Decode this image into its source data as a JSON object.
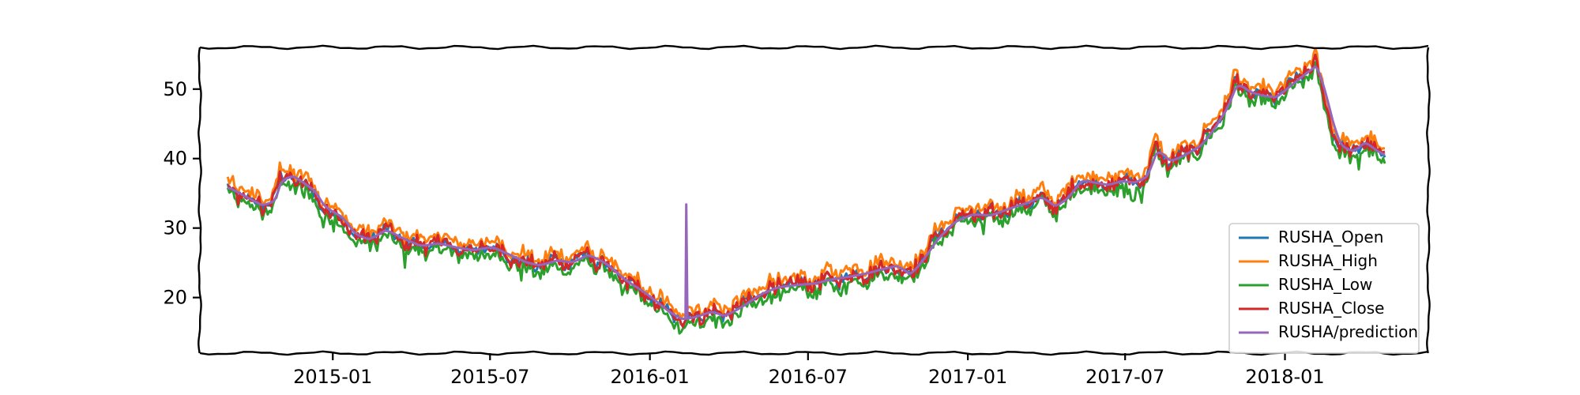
{
  "chart_data": {
    "type": "line",
    "title": "",
    "xlabel": "",
    "ylabel": "",
    "x_type": "date",
    "xlim": [
      "2014-08-01",
      "2018-06-15"
    ],
    "ylim": [
      12,
      56
    ],
    "x_ticks": [
      "2015-01-01",
      "2015-07-01",
      "2016-01-01",
      "2016-07-01",
      "2017-01-01",
      "2017-07-01",
      "2018-01-01"
    ],
    "x_tick_labels": [
      "2015-01",
      "2015-07",
      "2016-01",
      "2016-07",
      "2017-01",
      "2017-07",
      "2018-01"
    ],
    "y_ticks": [
      20,
      30,
      40,
      50
    ],
    "y_tick_labels": [
      "20",
      "30",
      "40",
      "50"
    ],
    "grid": false,
    "legend_position": "lower right",
    "series": [
      {
        "name": "RUSHA_Open",
        "color": "#1f77b4"
      },
      {
        "name": "RUSHA_High",
        "color": "#ff7f0e"
      },
      {
        "name": "RUSHA_Low",
        "color": "#2ca02c"
      },
      {
        "name": "RUSHA_Close",
        "color": "#d62728"
      },
      {
        "name": "RUSHA/prediction",
        "color": "#9467bd"
      }
    ],
    "price_path": [
      [
        "2014-09-02",
        35.8
      ],
      [
        "2014-09-20",
        34.5
      ],
      [
        "2014-10-10",
        33.2
      ],
      [
        "2014-10-25",
        34.0
      ],
      [
        "2014-11-01",
        37.2
      ],
      [
        "2014-11-15",
        37.5
      ],
      [
        "2014-12-01",
        36.0
      ],
      [
        "2014-12-10",
        35.2
      ],
      [
        "2014-12-20",
        33.0
      ],
      [
        "2015-01-10",
        31.5
      ],
      [
        "2015-01-25",
        29.0
      ],
      [
        "2015-02-10",
        28.3
      ],
      [
        "2015-03-01",
        29.8
      ],
      [
        "2015-03-20",
        28.5
      ],
      [
        "2015-04-10",
        27.4
      ],
      [
        "2015-05-01",
        27.8
      ],
      [
        "2015-05-20",
        27.2
      ],
      [
        "2015-06-10",
        26.8
      ],
      [
        "2015-07-01",
        27.3
      ],
      [
        "2015-07-20",
        26.2
      ],
      [
        "2015-08-10",
        25.0
      ],
      [
        "2015-08-25",
        24.6
      ],
      [
        "2015-09-15",
        25.4
      ],
      [
        "2015-10-01",
        25.0
      ],
      [
        "2015-10-20",
        26.2
      ],
      [
        "2015-11-10",
        24.8
      ],
      [
        "2015-12-01",
        22.5
      ],
      [
        "2015-12-20",
        21.0
      ],
      [
        "2016-01-05",
        19.5
      ],
      [
        "2016-01-20",
        18.0
      ],
      [
        "2016-02-05",
        16.8
      ],
      [
        "2016-02-20",
        17.2
      ],
      [
        "2016-03-10",
        18.0
      ],
      [
        "2016-03-25",
        17.3
      ],
      [
        "2016-04-15",
        18.8
      ],
      [
        "2016-05-05",
        20.5
      ],
      [
        "2016-05-25",
        21.5
      ],
      [
        "2016-06-15",
        21.8
      ],
      [
        "2016-07-05",
        22.0
      ],
      [
        "2016-07-25",
        22.6
      ],
      [
        "2016-08-15",
        23.0
      ],
      [
        "2016-09-05",
        23.5
      ],
      [
        "2016-09-25",
        24.2
      ],
      [
        "2016-10-10",
        24.6
      ],
      [
        "2016-10-25",
        23.2
      ],
      [
        "2016-11-10",
        25.8
      ],
      [
        "2016-11-25",
        28.5
      ],
      [
        "2016-12-15",
        31.0
      ],
      [
        "2017-01-05",
        32.0
      ],
      [
        "2017-01-25",
        31.8
      ],
      [
        "2017-02-15",
        32.8
      ],
      [
        "2017-03-05",
        33.5
      ],
      [
        "2017-03-25",
        34.5
      ],
      [
        "2017-04-10",
        33.0
      ],
      [
        "2017-04-25",
        34.5
      ],
      [
        "2017-05-10",
        37.0
      ],
      [
        "2017-05-25",
        36.5
      ],
      [
        "2017-06-10",
        36.2
      ],
      [
        "2017-06-25",
        36.8
      ],
      [
        "2017-07-10",
        36.5
      ],
      [
        "2017-07-25",
        37.5
      ],
      [
        "2017-08-05",
        41.5
      ],
      [
        "2017-08-20",
        39.5
      ],
      [
        "2017-09-05",
        40.5
      ],
      [
        "2017-09-25",
        42.0
      ],
      [
        "2017-10-10",
        44.5
      ],
      [
        "2017-10-25",
        47.5
      ],
      [
        "2017-11-05",
        51.0
      ],
      [
        "2017-11-20",
        49.5
      ],
      [
        "2017-12-05",
        49.0
      ],
      [
        "2017-12-20",
        48.8
      ],
      [
        "2018-01-05",
        50.5
      ],
      [
        "2018-01-25",
        52.5
      ],
      [
        "2018-02-05",
        53.5
      ],
      [
        "2018-02-15",
        49.0
      ],
      [
        "2018-02-25",
        44.0
      ],
      [
        "2018-03-05",
        41.5
      ],
      [
        "2018-03-20",
        41.0
      ],
      [
        "2018-04-01",
        42.5
      ],
      [
        "2018-04-15",
        41.0
      ],
      [
        "2018-04-27",
        40.3
      ]
    ],
    "prediction_spike": {
      "date": "2016-02-11",
      "value": 33.4
    }
  }
}
